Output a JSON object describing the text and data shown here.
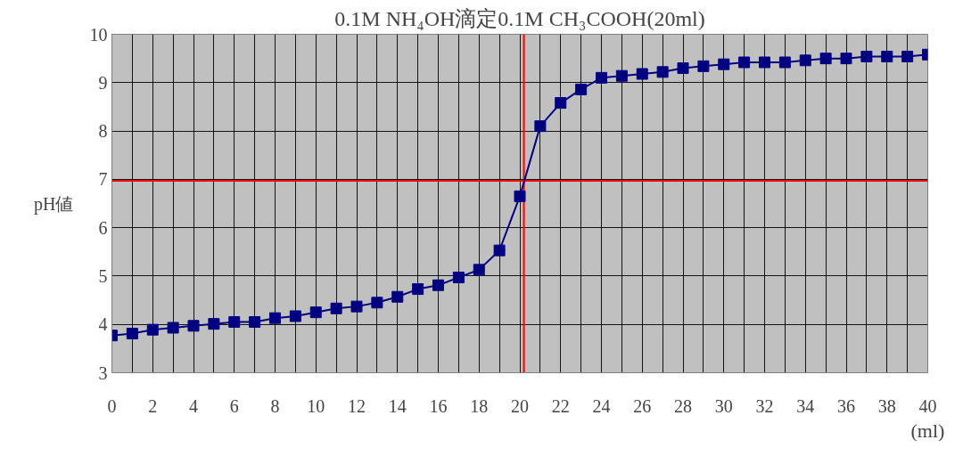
{
  "chart_data": {
    "type": "line",
    "title": "0.1M NH₄OH滴定0.1M CH₃COOH(20ml)",
    "xlabel": "(ml)",
    "ylabel": "pH値",
    "x": [
      0,
      1,
      2,
      3,
      4,
      5,
      6,
      7,
      8,
      9,
      10,
      11,
      12,
      13,
      14,
      15,
      16,
      17,
      18,
      19,
      20,
      21,
      22,
      23,
      24,
      25,
      26,
      27,
      28,
      29,
      30,
      31,
      32,
      33,
      34,
      35,
      36,
      37,
      38,
      39,
      40
    ],
    "series": [
      {
        "color": "#000080",
        "values": [
          3.77,
          3.81,
          3.89,
          3.93,
          3.97,
          4.01,
          4.05,
          4.05,
          4.13,
          4.17,
          4.25,
          4.33,
          4.37,
          4.45,
          4.57,
          4.73,
          4.81,
          4.97,
          5.13,
          5.53,
          6.65,
          8.1,
          8.58,
          8.86,
          9.1,
          9.14,
          9.18,
          9.22,
          9.3,
          9.34,
          9.38,
          9.42,
          9.42,
          9.42,
          9.46,
          9.5,
          9.5,
          9.54,
          9.54,
          9.54,
          9.58
        ]
      }
    ],
    "xlim": [
      0,
      40
    ],
    "ylim": [
      3,
      10
    ],
    "xticks": [
      0,
      {
        "value": 1,
        "label": null
      },
      2,
      {
        "value": 3,
        "label": null
      },
      4,
      {
        "value": 5,
        "label": null
      },
      6,
      {
        "value": 7,
        "label": null
      },
      8,
      {
        "value": 9,
        "label": null
      },
      10,
      {
        "value": 11,
        "label": null
      },
      12,
      {
        "value": 13,
        "label": null
      },
      14,
      {
        "value": 15,
        "label": null
      },
      16,
      {
        "value": 17,
        "label": null
      },
      18,
      {
        "value": 19,
        "label": null
      },
      20,
      {
        "value": 21,
        "label": null
      },
      22,
      {
        "value": 23,
        "label": null
      },
      24,
      {
        "value": 25,
        "label": null
      },
      26,
      {
        "value": 27,
        "label": null
      },
      28,
      {
        "value": 29,
        "label": null
      },
      30,
      {
        "value": 31,
        "label": null
      },
      32,
      {
        "value": 33,
        "label": null
      },
      34,
      {
        "value": 35,
        "label": null
      },
      36,
      {
        "value": 37,
        "label": null
      },
      38,
      {
        "value": 39,
        "label": null
      },
      40
    ],
    "yticks": [
      3,
      4,
      5,
      6,
      7,
      8,
      9,
      10
    ],
    "ref_lines": [
      {
        "axis": "x",
        "value": 20.2,
        "color": "#ff0000"
      },
      {
        "axis": "y",
        "value": 6.97,
        "color": "#ff0000"
      }
    ],
    "grid": true,
    "marker": "square",
    "line_style": "solid",
    "legend": false
  }
}
